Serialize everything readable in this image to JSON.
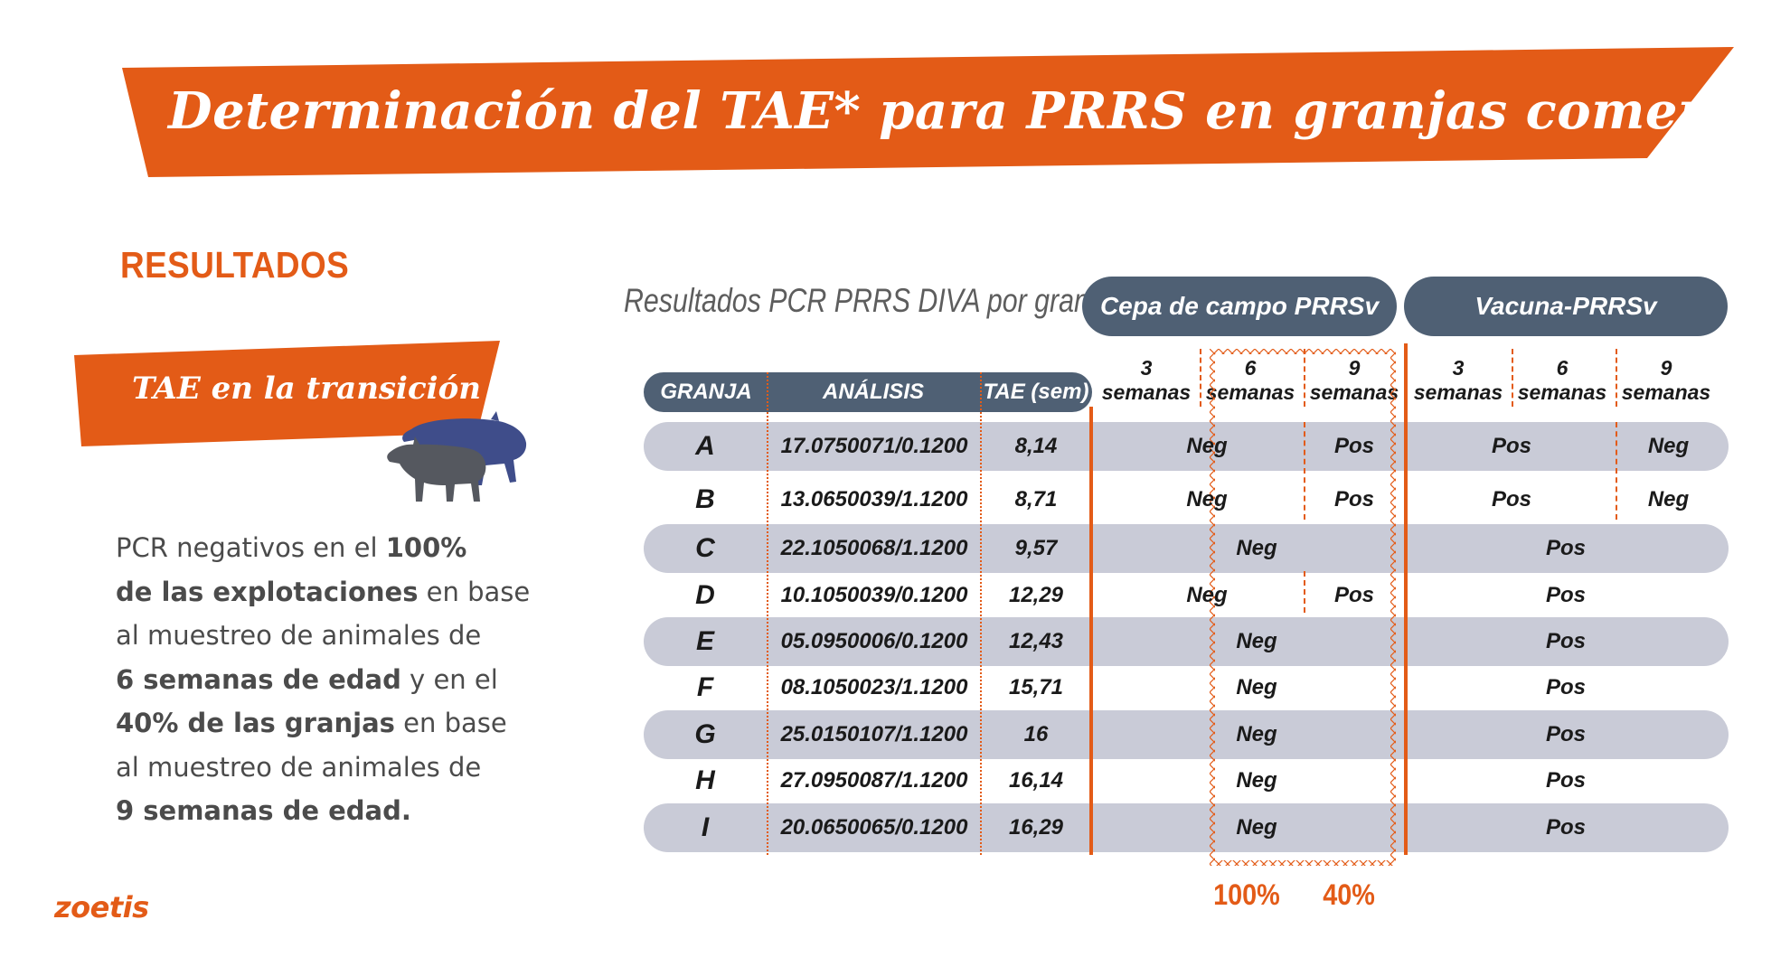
{
  "header": {
    "title": "Determinación del TAE*  para PRRS en granjas comerciales"
  },
  "section_label": "RESULTADOS",
  "transition_label": "TAE en la transición",
  "summary": {
    "parts": [
      {
        "text": "PCR negativos en el ",
        "bold": false
      },
      {
        "text": "100% de las explotaciones",
        "bold": true
      },
      {
        "text": " en base al muestreo de animales de ",
        "bold": false
      },
      {
        "text": "6 semanas de edad",
        "bold": true
      },
      {
        "text": " y en el ",
        "bold": false
      },
      {
        "text": "40% de las granjas",
        "bold": true
      },
      {
        "text": " en base al muestreo de animales de ",
        "bold": false
      },
      {
        "text": "9 semanas de edad.",
        "bold": true
      }
    ],
    "p1": "PCR negativos en el ",
    "b1": "100%",
    "b2": "de las explotaciones",
    "p2": " en base",
    "p3": "al muestreo de animales de",
    "b3": "6 semanas de edad",
    "p4": " y en el",
    "b4": "40% de las granjas",
    "p5": " en base",
    "p6": "al muestreo de animales de",
    "b5": "9 semanas de edad."
  },
  "logo": "zoetis",
  "table": {
    "caption": "Resultados PCR PRRS DIVA por granja",
    "groups": [
      "Cepa de campo PRRSv",
      "Vacuna-PRRSv"
    ],
    "columns": [
      "GRANJA",
      "ANÁLISIS",
      "TAE (sem)"
    ],
    "weeks": [
      [
        "3",
        "semanas"
      ],
      [
        "6",
        "semanas"
      ],
      [
        "9",
        "semanas"
      ],
      [
        "3",
        "semanas"
      ],
      [
        "6",
        "semanas"
      ],
      [
        "9",
        "semanas"
      ]
    ],
    "rows": [
      {
        "granja": "A",
        "analisis": "17.0750071/0.1200",
        "tae": "8,14",
        "campo": [
          "Neg",
          "Pos"
        ],
        "vacuna": [
          "Pos",
          "Neg"
        ]
      },
      {
        "granja": "B",
        "analisis": "13.0650039/1.1200",
        "tae": "8,71",
        "campo": [
          "Neg",
          "Pos"
        ],
        "vacuna": [
          "Pos",
          "Neg"
        ]
      },
      {
        "granja": "C",
        "analisis": "22.1050068/1.1200",
        "tae": "9,57",
        "campo": [
          "Neg"
        ],
        "vacuna": [
          "Pos"
        ]
      },
      {
        "granja": "D",
        "analisis": "10.1050039/0.1200",
        "tae": "12,29",
        "campo": [
          "Neg",
          "Pos"
        ],
        "vacuna": [
          "Pos"
        ]
      },
      {
        "granja": "E",
        "analisis": "05.0950006/0.1200",
        "tae": "12,43",
        "campo": [
          "Neg"
        ],
        "vacuna": [
          "Pos"
        ]
      },
      {
        "granja": "F",
        "analisis": "08.1050023/1.1200",
        "tae": "15,71",
        "campo": [
          "Neg"
        ],
        "vacuna": [
          "Pos"
        ]
      },
      {
        "granja": "G",
        "analisis": "25.0150107/1.1200",
        "tae": "16",
        "campo": [
          "Neg"
        ],
        "vacuna": [
          "Pos"
        ]
      },
      {
        "granja": "H",
        "analisis": "27.0950087/1.1200",
        "tae": "16,14",
        "campo": [
          "Neg"
        ],
        "vacuna": [
          "Pos"
        ]
      },
      {
        "granja": "I",
        "analisis": "20.0650065/0.1200",
        "tae": "16,29",
        "campo": [
          "Neg"
        ],
        "vacuna": [
          "Pos"
        ]
      }
    ],
    "footer_percentages": [
      "100%",
      "40%"
    ]
  },
  "colors": {
    "orange": "#e35b17",
    "slate": "#4f6074",
    "row_band": "#c9cbd7",
    "pig_blue": "#3f4d8a",
    "pig_gray": "#55585f"
  },
  "icons": [
    "pig-icon-large",
    "pig-icon-small"
  ]
}
